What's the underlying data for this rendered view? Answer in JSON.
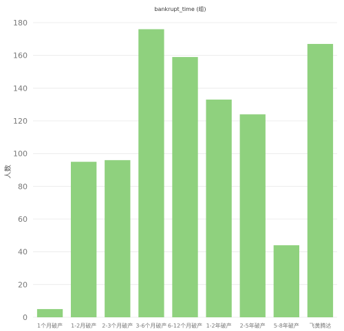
{
  "chart_data": {
    "type": "bar",
    "title": "bankrupt_time (组)",
    "xlabel": "",
    "ylabel": "人数",
    "categories": [
      "1个月破产",
      "1-2月破产",
      "2-3个月破产",
      "3-6个月破产",
      "6-12个月破产",
      "1-2年破产",
      "2-5年破产",
      "5-8年破产",
      "飞黄腾达"
    ],
    "values": [
      5,
      95,
      96,
      176,
      159,
      133,
      124,
      44,
      167
    ],
    "ylim": [
      0,
      180
    ],
    "yticks": [
      0,
      20,
      40,
      60,
      80,
      100,
      120,
      140,
      160,
      180
    ],
    "grid": true,
    "bar_color": "#8fd17e"
  }
}
